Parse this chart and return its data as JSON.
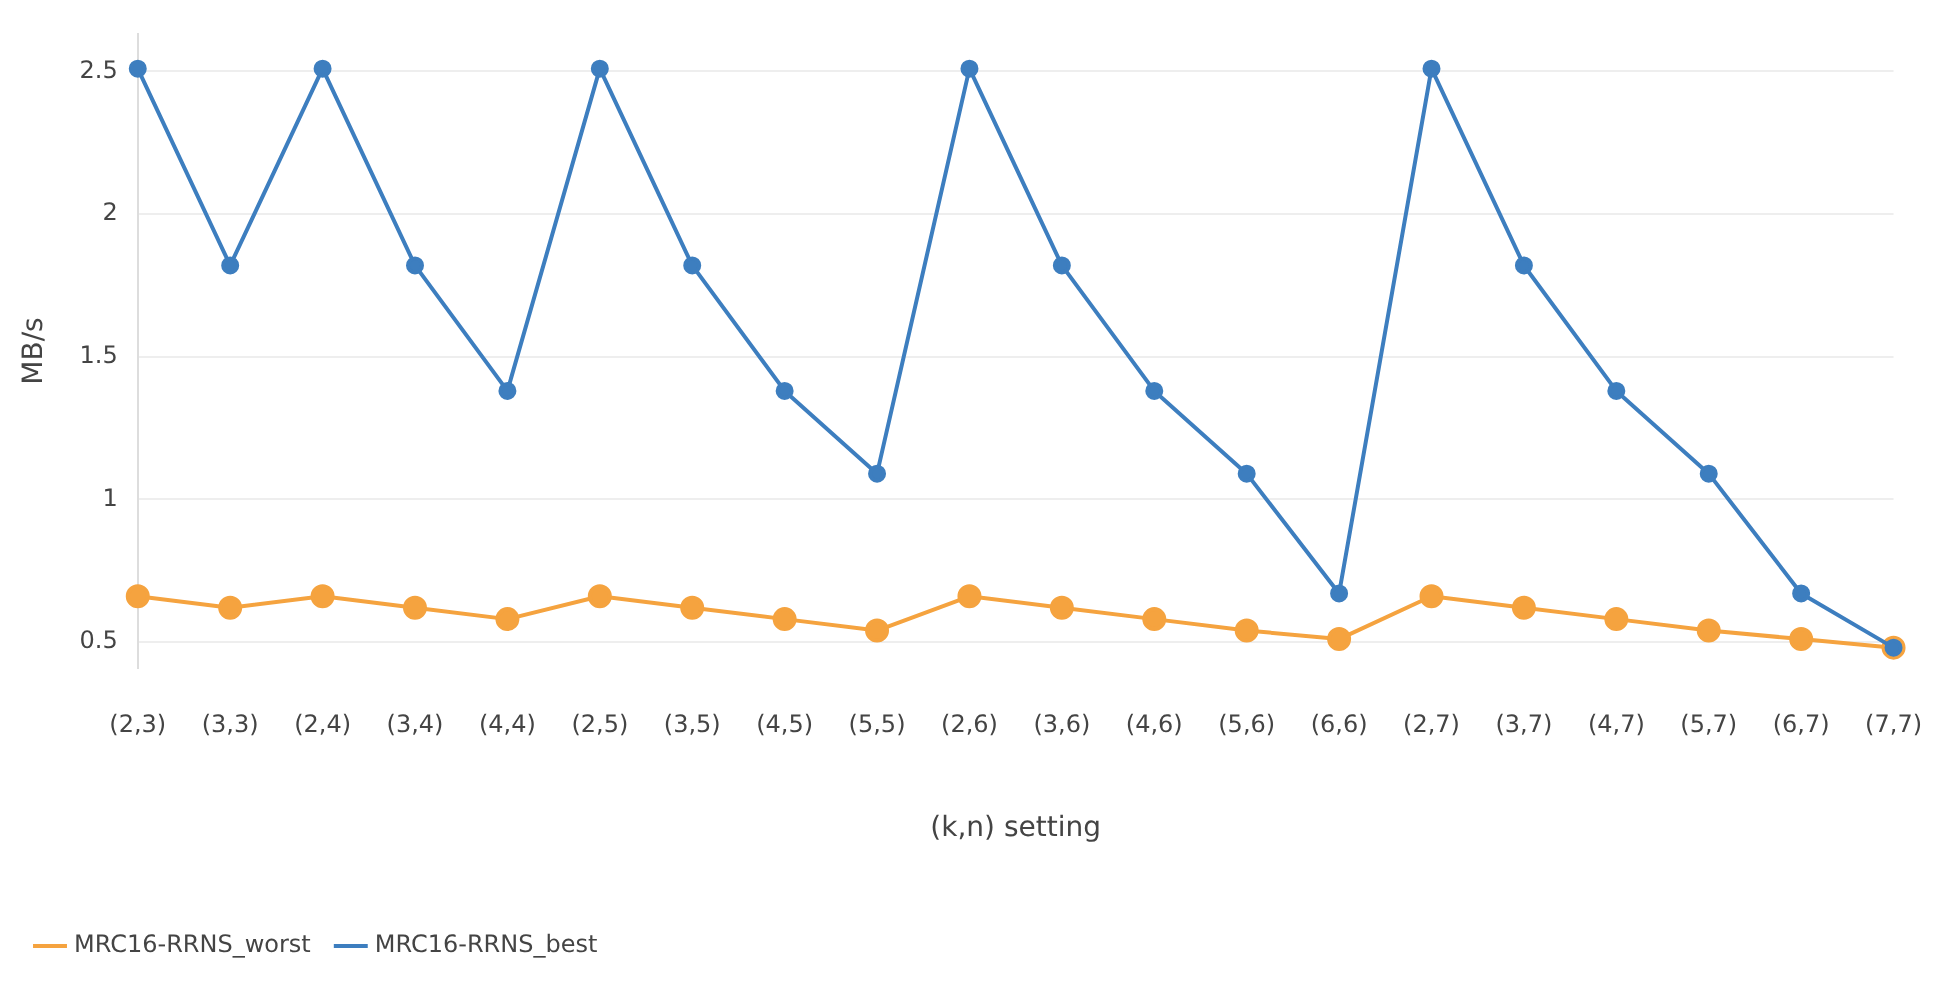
{
  "chart_data": {
    "type": "line",
    "xlabel": "(k,n) setting",
    "ylabel": "MB/s",
    "categories": [
      "(2,3)",
      "(3,3)",
      "(2,4)",
      "(3,4)",
      "(4,4)",
      "(2,5)",
      "(3,5)",
      "(4,5)",
      "(5,5)",
      "(2,6)",
      "(3,6)",
      "(4,6)",
      "(5,6)",
      "(6,6)",
      "(2,7)",
      "(3,7)",
      "(4,7)",
      "(5,7)",
      "(6,7)",
      "(7,7)"
    ],
    "series": [
      {
        "name": "MRC16-RRNS_worst",
        "color": "#f5a33f",
        "values": [
          0.66,
          0.62,
          0.66,
          0.62,
          0.58,
          0.66,
          0.62,
          0.58,
          0.54,
          0.66,
          0.62,
          0.58,
          0.54,
          0.51,
          0.66,
          0.62,
          0.58,
          0.54,
          0.51,
          0.48
        ]
      },
      {
        "name": "MRC16-RRNS_best",
        "color": "#3d7ebf",
        "values": [
          2.51,
          1.82,
          2.51,
          1.82,
          1.38,
          2.51,
          1.82,
          1.38,
          1.09,
          2.51,
          1.82,
          1.38,
          1.09,
          0.67,
          2.51,
          1.82,
          1.38,
          1.09,
          0.67,
          0.48
        ]
      }
    ],
    "ylim": [
      0.41,
      2.63
    ],
    "yticks": [
      0.5,
      1,
      1.5,
      2,
      2.5
    ],
    "grid": "y",
    "legend": "bottom left",
    "marker": "circle",
    "line_style": "solid"
  }
}
